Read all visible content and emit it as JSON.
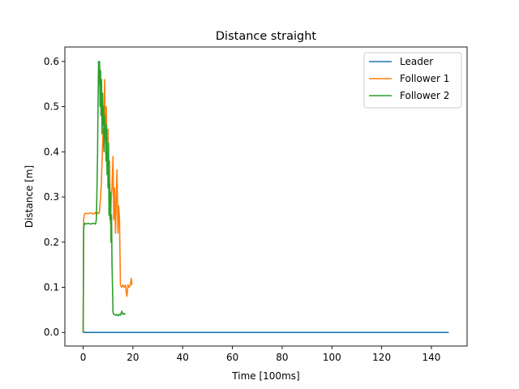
{
  "chart_data": {
    "type": "line",
    "title": "Distance straight",
    "xlabel": "Time [100ms]",
    "ylabel": "Distance [m]",
    "xlim": [
      -7.35,
      154.35
    ],
    "ylim": [
      -0.0301,
      0.6321
    ],
    "xticks": [
      0,
      20,
      40,
      60,
      80,
      100,
      120,
      140
    ],
    "yticks": [
      0.0,
      0.1,
      0.2,
      0.3,
      0.4,
      0.5,
      0.6
    ],
    "ytick_labels": [
      "0.0",
      "0.1",
      "0.2",
      "0.3",
      "0.4",
      "0.5",
      "0.6"
    ],
    "grid": false,
    "legend_position": "top-right",
    "series": [
      {
        "name": "Leader",
        "color": "#1f77b4",
        "x": [
          0,
          147
        ],
        "y": [
          0,
          0
        ]
      },
      {
        "name": "Follower 1",
        "color": "#ff7f0e",
        "x": [
          0,
          0.2,
          0.5,
          1,
          2,
          3,
          4,
          5,
          5.3,
          5.6,
          6,
          6.3,
          6.6,
          7,
          7.3,
          7.6,
          8,
          8.3,
          8.6,
          9,
          9.3,
          9.6,
          10,
          10.3,
          10.6,
          11,
          11.3,
          11.6,
          12,
          12.3,
          12.6,
          13,
          13.3,
          13.6,
          14,
          14.3,
          14.6,
          15,
          15.5,
          16,
          16.5,
          17,
          17.3,
          17.6,
          18,
          18.5,
          19,
          19.3,
          19.6
        ],
        "y": [
          0,
          0.25,
          0.262,
          0.264,
          0.263,
          0.265,
          0.262,
          0.266,
          0.26,
          0.264,
          0.265,
          0.263,
          0.27,
          0.3,
          0.33,
          0.38,
          0.45,
          0.41,
          0.56,
          0.42,
          0.5,
          0.38,
          0.45,
          0.33,
          0.38,
          0.24,
          0.3,
          0.32,
          0.39,
          0.25,
          0.32,
          0.22,
          0.3,
          0.36,
          0.22,
          0.28,
          0.25,
          0.105,
          0.1,
          0.105,
          0.1,
          0.105,
          0.09,
          0.08,
          0.105,
          0.1,
          0.105,
          0.12,
          0.105
        ]
      },
      {
        "name": "Follower 2",
        "color": "#2ca02c",
        "x": [
          0,
          0.2,
          0.5,
          1,
          2,
          3,
          4,
          5,
          5.3,
          5.5,
          5.8,
          6,
          6.2,
          6.4,
          6.6,
          6.8,
          7,
          7.2,
          7.4,
          7.6,
          7.8,
          8,
          8.2,
          8.4,
          8.6,
          8.8,
          9,
          9.2,
          9.4,
          9.6,
          9.8,
          10,
          10.2,
          10.4,
          10.6,
          10.8,
          11,
          11.2,
          11.4,
          11.6,
          11.8,
          12,
          12.3,
          12.6,
          13,
          13.5,
          14,
          14.5,
          15,
          15.5,
          16,
          16.5,
          17
        ],
        "y": [
          0,
          0.23,
          0.242,
          0.24,
          0.242,
          0.24,
          0.242,
          0.24,
          0.25,
          0.3,
          0.4,
          0.52,
          0.6,
          0.55,
          0.6,
          0.5,
          0.58,
          0.48,
          0.56,
          0.44,
          0.53,
          0.46,
          0.5,
          0.4,
          0.48,
          0.43,
          0.45,
          0.38,
          0.46,
          0.35,
          0.4,
          0.32,
          0.42,
          0.26,
          0.33,
          0.25,
          0.31,
          0.2,
          0.26,
          0.15,
          0.1,
          0.045,
          0.04,
          0.04,
          0.038,
          0.04,
          0.037,
          0.04,
          0.038,
          0.047,
          0.04,
          0.042,
          0.04
        ]
      }
    ]
  }
}
